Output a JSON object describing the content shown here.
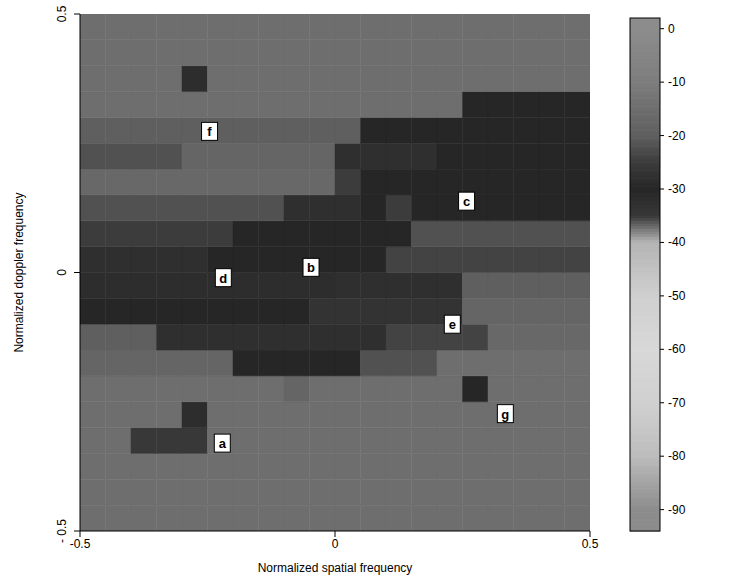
{
  "chart_data": {
    "type": "heatmap",
    "x_label": "Normalized spatial frequency",
    "y_label": "Normalized doppler frequency",
    "xlim": [
      -0.5,
      0.5
    ],
    "ylim": [
      -0.5,
      0.5
    ],
    "xticks": [
      -0.5,
      0,
      0.5
    ],
    "yticks": [
      {
        "value": -0.5,
        "label": "- 0.5"
      },
      0,
      0.5
    ],
    "grid": false,
    "heatmap": {
      "x_bins": [
        -0.5,
        -0.45,
        -0.4,
        -0.35,
        -0.3,
        -0.25,
        -0.2,
        -0.15,
        -0.1,
        -0.05,
        0,
        0.05,
        0.1,
        0.15,
        0.2,
        0.25,
        0.3,
        0.35,
        0.4,
        0.45,
        0.5
      ],
      "y_bins": [
        -0.5,
        -0.45,
        -0.4,
        -0.35,
        -0.3,
        -0.25,
        -0.2,
        -0.15,
        -0.1,
        -0.05,
        0,
        0.05,
        0.1,
        0.15,
        0.2,
        0.25,
        0.3,
        0.35,
        0.4,
        0.45,
        0.5
      ],
      "values": [
        [
          -15,
          -15,
          -15,
          -15,
          -15,
          -15,
          -15,
          -15,
          -15,
          -15,
          -15,
          -15,
          -15,
          -15,
          -15,
          -15,
          -15,
          -15,
          -15,
          -15
        ],
        [
          -15,
          -15,
          -15,
          -15,
          -15,
          -15,
          -15,
          -15,
          -15,
          -15,
          -15,
          -15,
          -15,
          -15,
          -15,
          -15,
          -15,
          -15,
          -15,
          -15
        ],
        [
          -15,
          -15,
          -15,
          -15,
          -15,
          -15,
          -15,
          -15,
          -15,
          -15,
          -15,
          -15,
          -15,
          -15,
          -15,
          -15,
          -15,
          -15,
          -15,
          -15
        ],
        [
          -15,
          -15,
          -26,
          -26,
          -26,
          -15,
          -15,
          -15,
          -15,
          -15,
          -15,
          -15,
          -15,
          -15,
          -15,
          -15,
          -15,
          -15,
          -15,
          -15
        ],
        [
          -15,
          -15,
          -15,
          -15,
          -32,
          -15,
          -15,
          -15,
          -15,
          -15,
          -15,
          -15,
          -15,
          -15,
          -15,
          -15,
          -15,
          -15,
          -15,
          -15
        ],
        [
          -15,
          -15,
          -15,
          -15,
          -15,
          -15,
          -15,
          -15,
          -18,
          -15,
          -15,
          -15,
          -15,
          -15,
          -15,
          -30,
          -15,
          -15,
          -15,
          -15
        ],
        [
          -18,
          -18,
          -18,
          -18,
          -18,
          -18,
          -30,
          -30,
          -30,
          -30,
          -30,
          -22,
          -22,
          -22,
          -15,
          -15,
          -15,
          -15,
          -15,
          -15
        ],
        [
          -20,
          -20,
          -20,
          -28,
          -28,
          -28,
          -28,
          -28,
          -28,
          -28,
          -28,
          -28,
          -24,
          -24,
          -24,
          -24,
          -17,
          -17,
          -17,
          -17
        ],
        [
          -30,
          -30,
          -30,
          -30,
          -30,
          -30,
          -30,
          -30,
          -30,
          -27,
          -27,
          -27,
          -27,
          -27,
          -27,
          -18,
          -18,
          -18,
          -18,
          -18
        ],
        [
          -32,
          -32,
          -32,
          -32,
          -32,
          -32,
          -32,
          -32,
          -32,
          -32,
          -28,
          -28,
          -28,
          -28,
          -28,
          -20,
          -20,
          -20,
          -20,
          -20
        ],
        [
          -28,
          -28,
          -28,
          -28,
          -28,
          -30,
          -30,
          -30,
          -30,
          -30,
          -30,
          -30,
          -24,
          -24,
          -24,
          -24,
          -24,
          -24,
          -24,
          -24
        ],
        [
          -25,
          -25,
          -25,
          -25,
          -25,
          -25,
          -30,
          -30,
          -30,
          -30,
          -30,
          -30,
          -30,
          -22,
          -22,
          -22,
          -22,
          -22,
          -22,
          -22
        ],
        [
          -22,
          -22,
          -22,
          -22,
          -22,
          -22,
          -22,
          -22,
          -28,
          -28,
          -28,
          -30,
          -25,
          -30,
          -30,
          -30,
          -30,
          -30,
          -30,
          -30
        ],
        [
          -17,
          -17,
          -17,
          -17,
          -17,
          -17,
          -17,
          -17,
          -17,
          -17,
          -25,
          -30,
          -30,
          -30,
          -30,
          -30,
          -30,
          -30,
          -30,
          -30
        ],
        [
          -22,
          -22,
          -22,
          -22,
          -18,
          -18,
          -18,
          -18,
          -18,
          -18,
          -28,
          -28,
          -28,
          -28,
          -30,
          -30,
          -30,
          -30,
          -30,
          -30
        ],
        [
          -20,
          -20,
          -20,
          -20,
          -20,
          -20,
          -20,
          -20,
          -20,
          -20,
          -20,
          -30,
          -30,
          -30,
          -30,
          -30,
          -30,
          -30,
          -30,
          -30
        ],
        [
          -15,
          -15,
          -15,
          -15,
          -15,
          -15,
          -15,
          -15,
          -15,
          -15,
          -15,
          -15,
          -15,
          -15,
          -15,
          -30,
          -30,
          -30,
          -30,
          -30
        ],
        [
          -15,
          -15,
          -15,
          -15,
          -32,
          -15,
          -15,
          -15,
          -15,
          -15,
          -15,
          -15,
          -15,
          -15,
          -15,
          -15,
          -15,
          -15,
          -15,
          -15
        ],
        [
          -15,
          -15,
          -15,
          -15,
          -15,
          -15,
          -15,
          -15,
          -15,
          -15,
          -15,
          -15,
          -15,
          -15,
          -15,
          -15,
          -15,
          -15,
          -15,
          -15
        ],
        [
          -15,
          -15,
          -15,
          -15,
          -15,
          -15,
          -15,
          -15,
          -15,
          -15,
          -15,
          -15,
          -15,
          -15,
          -15,
          -15,
          -15,
          -15,
          -15,
          -15
        ]
      ]
    },
    "colorbar": {
      "range": [
        -94,
        2
      ],
      "ticks": [
        0,
        -10,
        -20,
        -30,
        -40,
        -50,
        -60,
        -70,
        -80,
        -90
      ]
    },
    "annotations": [
      {
        "text": "f",
        "x": -0.246,
        "y": 0.273
      },
      {
        "text": "c",
        "x": 0.258,
        "y": 0.138
      },
      {
        "text": "b",
        "x": -0.047,
        "y": 0.01
      },
      {
        "text": "d",
        "x": -0.219,
        "y": -0.01
      },
      {
        "text": "e",
        "x": 0.23,
        "y": -0.1
      },
      {
        "text": "g",
        "x": 0.334,
        "y": -0.273
      },
      {
        "text": "a",
        "x": -0.221,
        "y": -0.33
      }
    ]
  }
}
